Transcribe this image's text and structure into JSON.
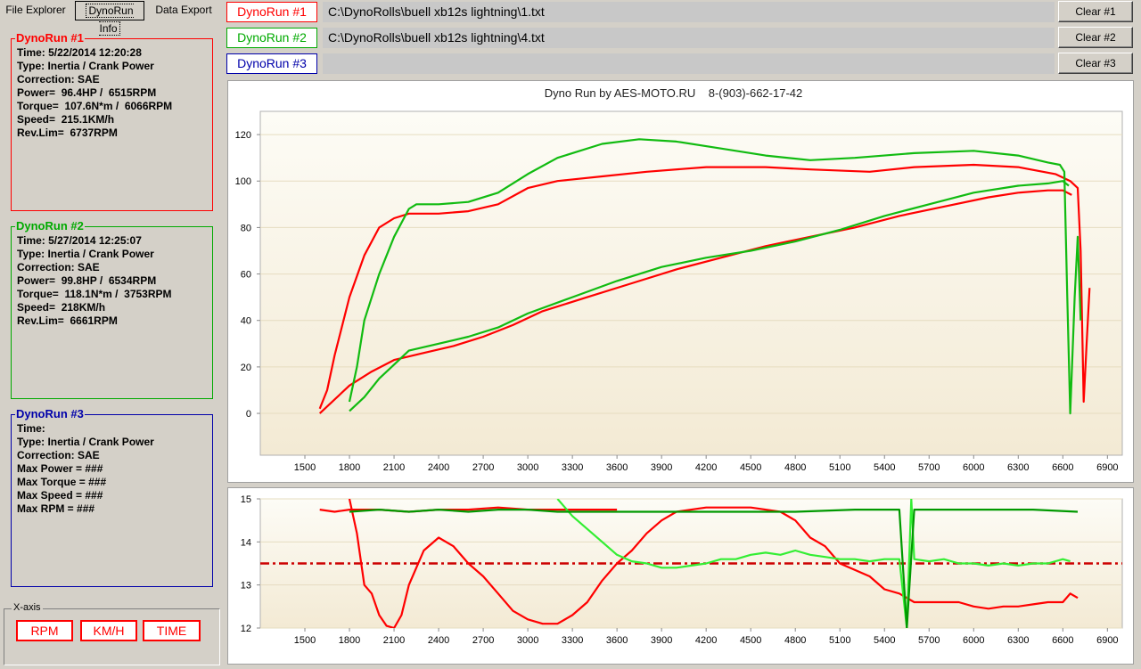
{
  "tabs": [
    {
      "label": "File Explorer"
    },
    {
      "label": "DynoRun Info"
    },
    {
      "label": "Data Export"
    }
  ],
  "runs": [
    {
      "label": "DynoRun #1",
      "path": "C:\\DynoRolls\\buell xb12s lightning\\1.txt",
      "clear": "Clear #1",
      "color": "#ff0000",
      "info": [
        "Time: 5/22/2014 12:20:28",
        "Type: Inertia / Crank Power",
        "Correction: SAE",
        "Power=  96.4HP /  6515RPM",
        "Torque=  107.6N*m /  6066RPM",
        "Speed=  215.1KM/h",
        "Rev.Lim=  6737RPM"
      ]
    },
    {
      "label": "DynoRun #2",
      "path": "C:\\DynoRolls\\buell xb12s lightning\\4.txt",
      "clear": "Clear #2",
      "color": "#00aa00",
      "info": [
        "Time: 5/27/2014 12:25:07",
        "Type: Inertia / Crank Power",
        "Correction: SAE",
        "Power=  99.8HP /  6534RPM",
        "Torque=  118.1N*m /  3753RPM",
        "Speed=  218KM/h",
        "Rev.Lim=  6661RPM"
      ]
    },
    {
      "label": "DynoRun #3",
      "path": "",
      "clear": "Clear #3",
      "color": "#0000aa",
      "info": [
        "Time:",
        "Type: Inertia / Crank Power",
        "Correction: SAE",
        "Max Power = ###",
        "Max Torque = ###",
        "Max Speed = ###",
        "Max RPM = ###"
      ]
    }
  ],
  "xaxis": {
    "legend": "X-axis",
    "buttons": [
      "RPM",
      "KM/H",
      "TIME"
    ]
  },
  "chart_data": [
    {
      "type": "line",
      "title": "Dyno Run by AES-MOTO.RU    8-(903)-662-17-42",
      "xlim": [
        1200,
        7000
      ],
      "ylim": [
        -18,
        130
      ],
      "xticks": [
        1500,
        1800,
        2100,
        2400,
        2700,
        3000,
        3300,
        3600,
        3900,
        4200,
        4500,
        4800,
        5100,
        5400,
        5700,
        6000,
        6300,
        6600,
        6900
      ],
      "yticks": [
        0,
        20,
        40,
        60,
        80,
        100,
        120
      ],
      "grid": true,
      "series": [
        {
          "id": "run1-torque",
          "color": "#ff0000",
          "points": [
            [
              1600,
              2
            ],
            [
              1650,
              10
            ],
            [
              1700,
              25
            ],
            [
              1800,
              50
            ],
            [
              1900,
              68
            ],
            [
              2000,
              80
            ],
            [
              2100,
              84
            ],
            [
              2200,
              86
            ],
            [
              2400,
              86
            ],
            [
              2600,
              87
            ],
            [
              2800,
              90
            ],
            [
              3000,
              97
            ],
            [
              3200,
              100
            ],
            [
              3500,
              102
            ],
            [
              3800,
              104
            ],
            [
              4200,
              106
            ],
            [
              4600,
              106
            ],
            [
              4900,
              105
            ],
            [
              5300,
              104
            ],
            [
              5600,
              106
            ],
            [
              6000,
              107
            ],
            [
              6300,
              106
            ],
            [
              6550,
              103
            ],
            [
              6650,
              100
            ],
            [
              6700,
              97
            ],
            [
              6720,
              70
            ],
            [
              6740,
              5
            ],
            [
              6760,
              30
            ],
            [
              6780,
              54
            ]
          ]
        },
        {
          "id": "run1-power",
          "color": "#ff0000",
          "points": [
            [
              1600,
              0
            ],
            [
              1800,
              12
            ],
            [
              1950,
              18
            ],
            [
              2100,
              23
            ],
            [
              2300,
              26
            ],
            [
              2500,
              29
            ],
            [
              2700,
              33
            ],
            [
              2900,
              38
            ],
            [
              3100,
              44
            ],
            [
              3400,
              50
            ],
            [
              3700,
              56
            ],
            [
              4000,
              62
            ],
            [
              4300,
              67
            ],
            [
              4600,
              72
            ],
            [
              4900,
              76
            ],
            [
              5200,
              80
            ],
            [
              5500,
              85
            ],
            [
              5800,
              89
            ],
            [
              6100,
              93
            ],
            [
              6300,
              95
            ],
            [
              6500,
              96
            ],
            [
              6600,
              96
            ],
            [
              6660,
              94
            ]
          ]
        },
        {
          "id": "run2-torque",
          "color": "#11bb11",
          "points": [
            [
              1800,
              5
            ],
            [
              1850,
              20
            ],
            [
              1900,
              40
            ],
            [
              2000,
              60
            ],
            [
              2100,
              76
            ],
            [
              2200,
              88
            ],
            [
              2250,
              90
            ],
            [
              2400,
              90
            ],
            [
              2600,
              91
            ],
            [
              2800,
              95
            ],
            [
              3000,
              103
            ],
            [
              3200,
              110
            ],
            [
              3500,
              116
            ],
            [
              3750,
              118
            ],
            [
              4000,
              117
            ],
            [
              4300,
              114
            ],
            [
              4600,
              111
            ],
            [
              4900,
              109
            ],
            [
              5200,
              110
            ],
            [
              5600,
              112
            ],
            [
              6000,
              113
            ],
            [
              6300,
              111
            ],
            [
              6500,
              108
            ],
            [
              6580,
              107
            ],
            [
              6610,
              104
            ],
            [
              6630,
              50
            ],
            [
              6650,
              0
            ],
            [
              6680,
              50
            ],
            [
              6700,
              76
            ],
            [
              6720,
              40
            ]
          ]
        },
        {
          "id": "run2-power",
          "color": "#11bb11",
          "points": [
            [
              1800,
              1
            ],
            [
              1900,
              7
            ],
            [
              2000,
              15
            ],
            [
              2100,
              21
            ],
            [
              2200,
              27
            ],
            [
              2400,
              30
            ],
            [
              2600,
              33
            ],
            [
              2800,
              37
            ],
            [
              3000,
              43
            ],
            [
              3300,
              50
            ],
            [
              3600,
              57
            ],
            [
              3900,
              63
            ],
            [
              4200,
              67
            ],
            [
              4500,
              70
            ],
            [
              4800,
              74
            ],
            [
              5100,
              79
            ],
            [
              5400,
              85
            ],
            [
              5700,
              90
            ],
            [
              6000,
              95
            ],
            [
              6300,
              98
            ],
            [
              6500,
              99
            ],
            [
              6600,
              100
            ],
            [
              6640,
              98
            ]
          ]
        }
      ]
    },
    {
      "type": "line",
      "title": "",
      "xlim": [
        1200,
        7000
      ],
      "ylim": [
        12,
        15
      ],
      "xticks": [
        1500,
        1800,
        2100,
        2400,
        2700,
        3000,
        3300,
        3600,
        3900,
        4200,
        4500,
        4800,
        5100,
        5400,
        5700,
        6000,
        6300,
        6600,
        6900
      ],
      "yticks": [
        12,
        13,
        14,
        15
      ],
      "grid": true,
      "reference_line": {
        "y": 13.5,
        "color": "#cc0000"
      },
      "series": [
        {
          "id": "run1-afr",
          "color": "#ff0000",
          "points": [
            [
              1800,
              15
            ],
            [
              1850,
              14.2
            ],
            [
              1900,
              13.0
            ],
            [
              1950,
              12.8
            ],
            [
              2000,
              12.3
            ],
            [
              2050,
              12.05
            ],
            [
              2100,
              12.0
            ],
            [
              2150,
              12.3
            ],
            [
              2200,
              13.0
            ],
            [
              2300,
              13.8
            ],
            [
              2400,
              14.1
            ],
            [
              2500,
              13.9
            ],
            [
              2600,
              13.5
            ],
            [
              2700,
              13.2
            ],
            [
              2800,
              12.8
            ],
            [
              2900,
              12.4
            ],
            [
              3000,
              12.2
            ],
            [
              3100,
              12.1
            ],
            [
              3200,
              12.1
            ],
            [
              3300,
              12.3
            ],
            [
              3400,
              12.6
            ],
            [
              3500,
              13.1
            ],
            [
              3600,
              13.5
            ],
            [
              3700,
              13.8
            ],
            [
              3800,
              14.2
            ],
            [
              3900,
              14.5
            ],
            [
              4000,
              14.7
            ],
            [
              4200,
              14.8
            ],
            [
              4500,
              14.8
            ],
            [
              4700,
              14.7
            ],
            [
              4800,
              14.5
            ],
            [
              4900,
              14.1
            ],
            [
              5000,
              13.9
            ],
            [
              5100,
              13.5
            ],
            [
              5300,
              13.2
            ],
            [
              5400,
              12.9
            ],
            [
              5500,
              12.8
            ],
            [
              5600,
              12.6
            ],
            [
              5700,
              12.6
            ],
            [
              5800,
              12.6
            ],
            [
              5900,
              12.6
            ],
            [
              6000,
              12.5
            ],
            [
              6100,
              12.45
            ],
            [
              6200,
              12.5
            ],
            [
              6300,
              12.5
            ],
            [
              6400,
              12.55
            ],
            [
              6500,
              12.6
            ],
            [
              6600,
              12.6
            ],
            [
              6650,
              12.8
            ],
            [
              6700,
              12.7
            ]
          ]
        },
        {
          "id": "run1-afr-flat",
          "color": "#ff0000",
          "points": [
            [
              1600,
              14.75
            ],
            [
              1700,
              14.7
            ],
            [
              1800,
              14.75
            ],
            [
              2000,
              14.75
            ],
            [
              2200,
              14.7
            ],
            [
              2400,
              14.75
            ],
            [
              2600,
              14.75
            ],
            [
              2800,
              14.8
            ],
            [
              3000,
              14.75
            ],
            [
              3200,
              14.75
            ],
            [
              3400,
              14.75
            ],
            [
              3600,
              14.75
            ]
          ]
        },
        {
          "id": "run2-afr",
          "color": "#33ee33",
          "points": [
            [
              3200,
              15
            ],
            [
              3250,
              14.8
            ],
            [
              3300,
              14.6
            ],
            [
              3400,
              14.3
            ],
            [
              3500,
              14.0
            ],
            [
              3600,
              13.7
            ],
            [
              3700,
              13.55
            ],
            [
              3800,
              13.5
            ],
            [
              3900,
              13.4
            ],
            [
              4000,
              13.4
            ],
            [
              4100,
              13.45
            ],
            [
              4200,
              13.5
            ],
            [
              4300,
              13.6
            ],
            [
              4400,
              13.6
            ],
            [
              4500,
              13.7
            ],
            [
              4600,
              13.75
            ],
            [
              4700,
              13.7
            ],
            [
              4800,
              13.8
            ],
            [
              4900,
              13.7
            ],
            [
              5000,
              13.65
            ],
            [
              5100,
              13.6
            ],
            [
              5200,
              13.6
            ],
            [
              5300,
              13.55
            ],
            [
              5400,
              13.6
            ],
            [
              5500,
              13.6
            ],
            [
              5550,
              12.0
            ],
            [
              5580,
              15.0
            ],
            [
              5600,
              13.6
            ],
            [
              5700,
              13.55
            ],
            [
              5800,
              13.6
            ],
            [
              5900,
              13.5
            ],
            [
              6000,
              13.5
            ],
            [
              6100,
              13.45
            ],
            [
              6200,
              13.5
            ],
            [
              6300,
              13.45
            ],
            [
              6400,
              13.5
            ],
            [
              6500,
              13.5
            ],
            [
              6600,
              13.6
            ],
            [
              6650,
              13.55
            ]
          ]
        },
        {
          "id": "run2-afr-flat",
          "color": "#009900",
          "points": [
            [
              1800,
              14.7
            ],
            [
              2000,
              14.75
            ],
            [
              2200,
              14.7
            ],
            [
              2400,
              14.75
            ],
            [
              2600,
              14.7
            ],
            [
              2800,
              14.75
            ],
            [
              3000,
              14.75
            ],
            [
              3200,
              14.7
            ],
            [
              3600,
              14.7
            ],
            [
              4000,
              14.7
            ],
            [
              4400,
              14.7
            ],
            [
              4800,
              14.7
            ],
            [
              5200,
              14.75
            ],
            [
              5500,
              14.75
            ],
            [
              5550,
              12.0
            ],
            [
              5600,
              14.75
            ],
            [
              6000,
              14.75
            ],
            [
              6400,
              14.75
            ],
            [
              6700,
              14.7
            ]
          ]
        }
      ]
    }
  ]
}
